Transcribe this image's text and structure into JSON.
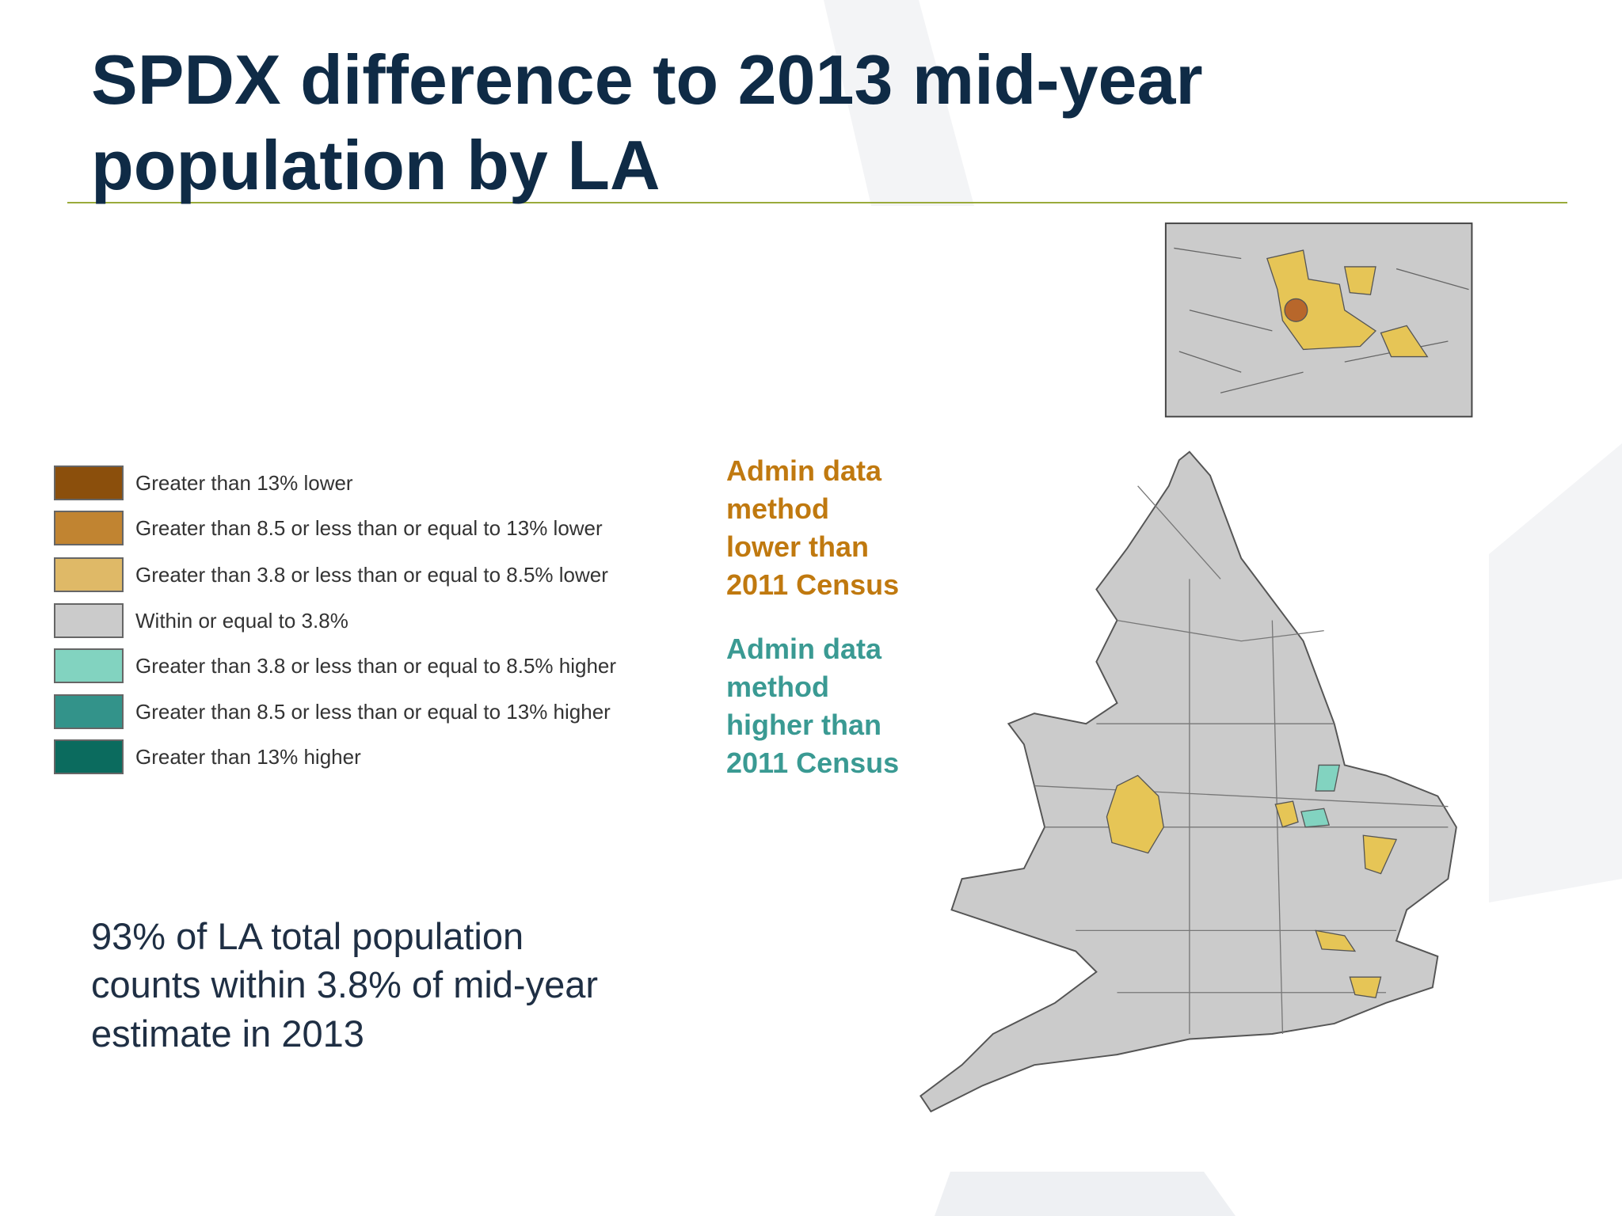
{
  "title": [
    "SPDX difference to 2013 mid-year",
    "population by LA"
  ],
  "legend": [
    {
      "label": "Greater than 13% lower",
      "color": "#8b4f0c"
    },
    {
      "label": "Greater than 8.5 or less than or equal to 13% lower",
      "color": "#c18431"
    },
    {
      "label": "Greater than 3.8 or less than or equal to 8.5% lower",
      "color": "#dfb967"
    },
    {
      "label": "Within or equal to 3.8%",
      "color": "#cbcbcb"
    },
    {
      "label": "Greater than 3.8 or less than or equal to 8.5% higher",
      "color": "#82d3c0"
    },
    {
      "label": "Greater than 8.5 or less than or equal to 13% higher",
      "color": "#33938a"
    },
    {
      "label": "Greater than 13% higher",
      "color": "#0b6b5e"
    }
  ],
  "notes": [
    {
      "lines": [
        "Admin data",
        "method",
        "lower than",
        "2011 Census"
      ],
      "color": "#c0790f"
    },
    {
      "lines": [
        "Admin data",
        "method",
        "higher than",
        "2011 Census"
      ],
      "color": "#3a9a93"
    }
  ],
  "summary": [
    "93% of LA total population",
    "counts within 3.8% of mid-year",
    "estimate in 2013"
  ]
}
